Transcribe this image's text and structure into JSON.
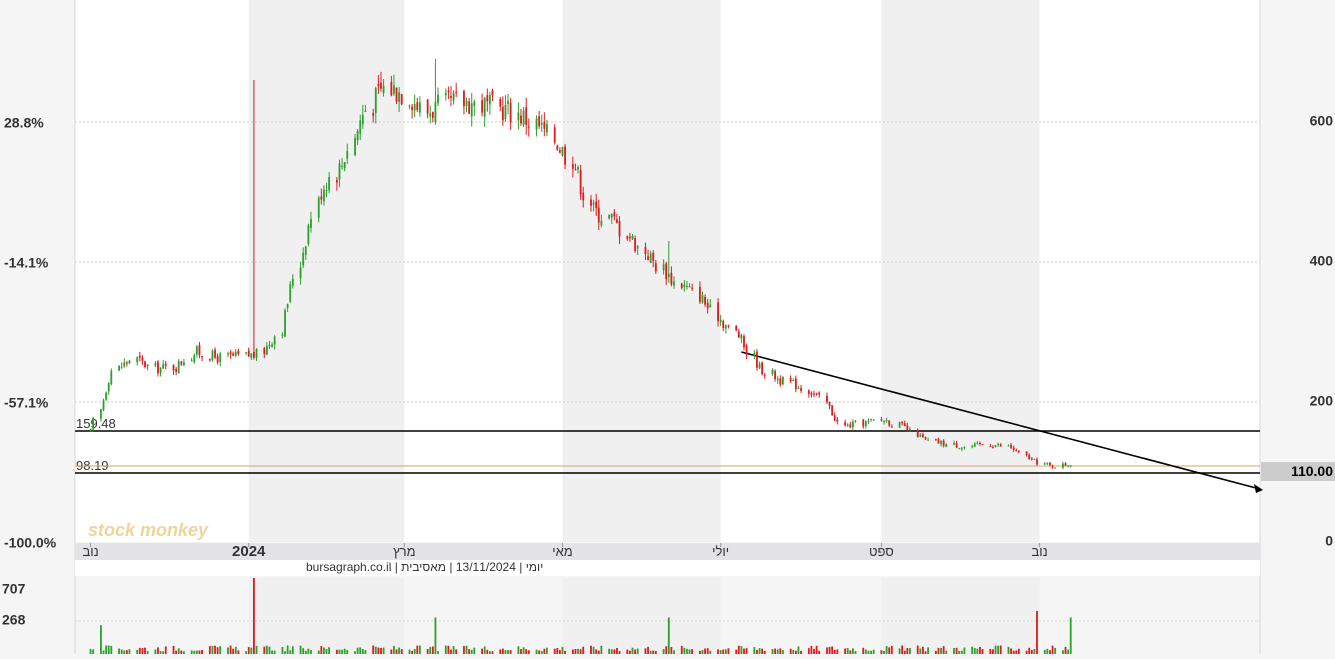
{
  "chart_data": {
    "type": "candlestick",
    "left_axis_labels": [
      "28.8%",
      "-14.1%",
      "-57.1%",
      "-100.0%"
    ],
    "right_axis_labels": [
      "600",
      "400",
      "200",
      "0"
    ],
    "ylim": [
      0,
      770
    ],
    "x_tick_labels": [
      "נוב",
      "2024",
      "מרץ",
      "מאי",
      "יולי",
      "ספט",
      "נוב"
    ],
    "current_price": "110.00",
    "level_lines": [
      {
        "label": "159.48",
        "value": 159.48,
        "color": "#000000"
      },
      {
        "label": "98.19",
        "value": 98.19,
        "color": "#000000"
      },
      {
        "label": "",
        "value": 107.5,
        "color": "#d9a066"
      }
    ],
    "trendline": {
      "start": {
        "date": "2024-07-09",
        "value": 268
      },
      "end": {
        "date": "2025-01-25",
        "value": 70
      }
    },
    "price_series": {
      "start": "2023-11-01",
      "step": "trading day",
      "close_samples": [
        158,
        245,
        262,
        248,
        250,
        272,
        263,
        265,
        268,
        300,
        408,
        505,
        540,
        610,
        650,
        643,
        615,
        625,
        630,
        622,
        618,
        603,
        580,
        548,
        475,
        460,
        430,
        400,
        372,
        355,
        322,
        295,
        250,
        232,
        222,
        205,
        165,
        170,
        175,
        163,
        145,
        140,
        136,
        140,
        136,
        118,
        108,
        112
      ],
      "daily_volume_range": [
        0,
        707
      ]
    },
    "volume_axis_labels": [
      "707",
      "268"
    ],
    "volume_peaks": [
      {
        "date": "2023-11-05",
        "volume": 268
      },
      {
        "date": "2024-01-03",
        "volume": 707
      },
      {
        "date": "2024-03-13",
        "volume": 340
      },
      {
        "date": "2024-06-11",
        "volume": 340
      },
      {
        "date": "2024-10-25",
        "volume": 200
      },
      {
        "date": "2024-10-31",
        "volume": 400
      },
      {
        "date": "2024-11-13",
        "volume": 340
      }
    ]
  },
  "info_bar": "יומי | 13/11/2024 | מאסיבית | bursagraph.co.il",
  "watermark": "stock monkey",
  "colors": {
    "up": "#2ca02c",
    "down": "#e0191b",
    "accent": "#d9a066",
    "label_bg": "#cccccc"
  }
}
